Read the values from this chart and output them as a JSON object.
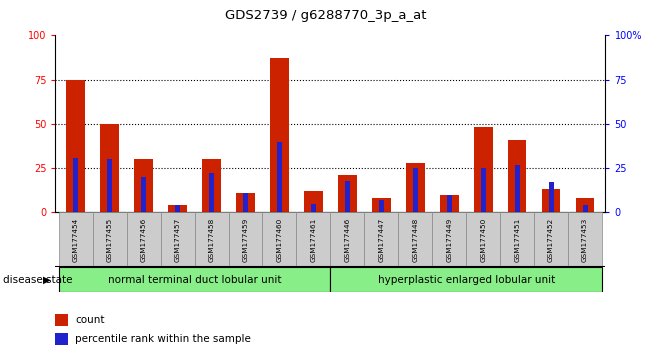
{
  "title": "GDS2739 / g6288770_3p_a_at",
  "samples": [
    "GSM177454",
    "GSM177455",
    "GSM177456",
    "GSM177457",
    "GSM177458",
    "GSM177459",
    "GSM177460",
    "GSM177461",
    "GSM177446",
    "GSM177447",
    "GSM177448",
    "GSM177449",
    "GSM177450",
    "GSM177451",
    "GSM177452",
    "GSM177453"
  ],
  "count_values": [
    75,
    50,
    30,
    4,
    30,
    11,
    87,
    12,
    21,
    8,
    28,
    10,
    48,
    41,
    13,
    8
  ],
  "percentile_values": [
    31,
    30,
    20,
    4,
    22,
    11,
    40,
    5,
    18,
    7,
    25,
    10,
    25,
    27,
    17,
    4
  ],
  "group1_label": "normal terminal duct lobular unit",
  "group2_label": "hyperplastic enlarged lobular unit",
  "group1_count": 8,
  "group2_count": 8,
  "count_color": "#cc2200",
  "percentile_color": "#2222cc",
  "ylim": [
    0,
    100
  ],
  "yticks": [
    0,
    25,
    50,
    75,
    100
  ],
  "grid_lines": [
    25,
    50,
    75
  ],
  "group_bg_color": "#88ee88",
  "legend_count_label": "count",
  "legend_pct_label": "percentile rank within the sample",
  "disease_state_label": "disease state",
  "right_ytick_labels": [
    "0",
    "25",
    "50",
    "75",
    "100%"
  ],
  "right_ytick_values": [
    0,
    25,
    50,
    75,
    100
  ]
}
